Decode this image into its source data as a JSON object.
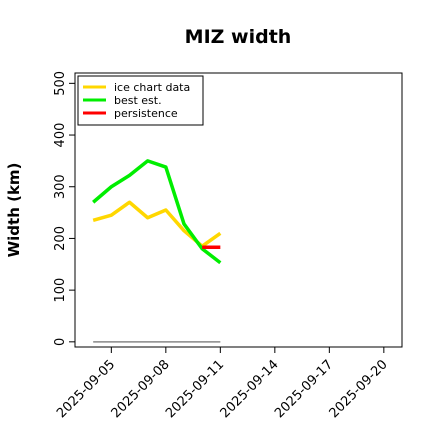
{
  "chart_data": {
    "type": "line",
    "title": "MIZ width",
    "xlabel": "",
    "ylabel": "Width (km)",
    "x_tick_labels": [
      "2025-09-05",
      "2025-09-08",
      "2025-09-11",
      "2025-09-14",
      "2025-09-17",
      "2025-09-20"
    ],
    "y_ticks": [
      0,
      100,
      200,
      300,
      400,
      500
    ],
    "xlim": [
      "2025-09-03",
      "2025-09-21"
    ],
    "ylim": [
      -10,
      520
    ],
    "legend_position": "top-left",
    "series": [
      {
        "name": "ice chart data",
        "color": "#FFD700",
        "x": [
          "2025-09-04",
          "2025-09-05",
          "2025-09-06",
          "2025-09-07",
          "2025-09-08",
          "2025-09-09",
          "2025-09-10",
          "2025-09-11"
        ],
        "y": [
          235,
          245,
          270,
          240,
          255,
          215,
          185,
          210
        ]
      },
      {
        "name": "best est.",
        "color": "#00EE00",
        "x": [
          "2025-09-04",
          "2025-09-05",
          "2025-09-06",
          "2025-09-07",
          "2025-09-08",
          "2025-09-09",
          "2025-09-10",
          "2025-09-11"
        ],
        "y": [
          270,
          300,
          322,
          350,
          338,
          228,
          180,
          153
        ]
      },
      {
        "name": "persistence",
        "color": "#FF0000",
        "x": [
          "2025-09-10",
          "2025-09-11"
        ],
        "y": [
          183,
          183
        ]
      }
    ],
    "reference_line": {
      "color": "#888888",
      "x": [
        "2025-09-04",
        "2025-09-11"
      ],
      "y": [
        0,
        0
      ]
    }
  }
}
